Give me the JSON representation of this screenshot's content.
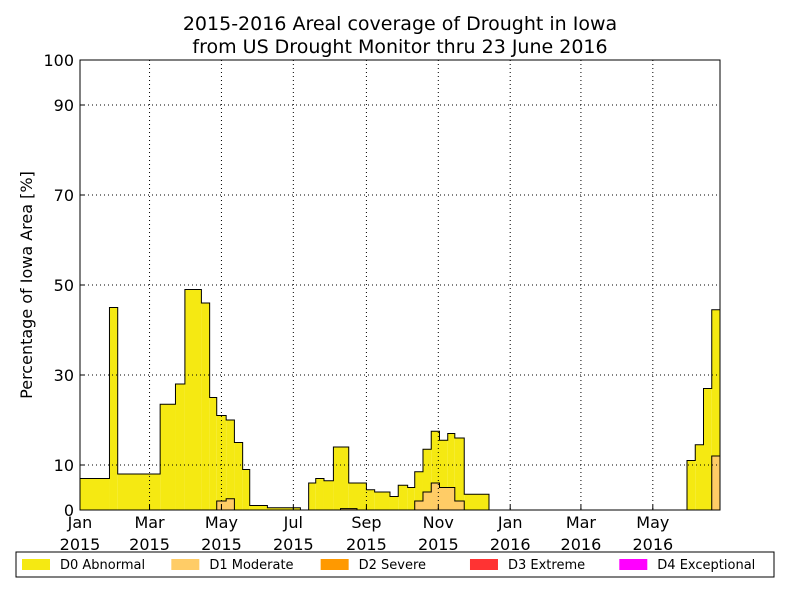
{
  "chart_data": {
    "type": "step-area",
    "title": "2015-2016 Areal coverage of Drought in Iowa",
    "subtitle": "from US Drought Monitor thru 23 June 2016",
    "y_label": "Percentage of Iowa Area [%]",
    "xlim": [
      0,
      543
    ],
    "xticks": [
      {
        "value": 0,
        "label": "Jan\n2015"
      },
      {
        "value": 59,
        "label": "Mar\n2015"
      },
      {
        "value": 120,
        "label": "May\n2015"
      },
      {
        "value": 181,
        "label": "Jul\n2015"
      },
      {
        "value": 243,
        "label": "Sep\n2015"
      },
      {
        "value": 304,
        "label": "Nov\n2015"
      },
      {
        "value": 365,
        "label": "Jan\n2016"
      },
      {
        "value": 425,
        "label": "Mar\n2016"
      },
      {
        "value": 486,
        "label": "May\n2016"
      }
    ],
    "ylim": [
      0,
      100
    ],
    "yticks": [
      0,
      10,
      30,
      50,
      70,
      90,
      100
    ],
    "grid": true,
    "legend": "bottom",
    "series": [
      {
        "name": "D0 Abnormal",
        "color": "#f5e912",
        "x": [
          0,
          25,
          32,
          68,
          81,
          89,
          103,
          110,
          116,
          124,
          131,
          138,
          144,
          159,
          187,
          194,
          200,
          207,
          215,
          228,
          243,
          250,
          263,
          270,
          278,
          284,
          291,
          298,
          305,
          312,
          318,
          326,
          347,
          515,
          522,
          529,
          536
        ],
        "values": [
          7,
          45,
          8,
          23.5,
          28,
          49,
          46,
          25,
          21,
          20,
          15,
          9,
          1,
          0.5,
          0,
          6,
          7,
          6.5,
          14,
          6,
          4.5,
          4,
          3,
          5.5,
          5,
          8.5,
          13.5,
          17.5,
          15.5,
          17,
          16,
          3.5,
          0,
          11,
          14.5,
          27,
          44.5
        ]
      },
      {
        "name": "D1 Moderate",
        "color": "#ffcc66",
        "x": [
          0,
          116,
          124,
          131,
          221,
          235,
          284,
          291,
          298,
          305,
          318,
          326,
          536
        ],
        "values": [
          0,
          2,
          2.5,
          0,
          0.3,
          0,
          2,
          4,
          6,
          5,
          2,
          0,
          12
        ]
      },
      {
        "name": "D2 Severe",
        "color": "#ff9900",
        "x": [
          0
        ],
        "values": [
          0
        ]
      },
      {
        "name": "D3 Extreme",
        "color": "#ff3333",
        "x": [
          0
        ],
        "values": [
          0
        ]
      },
      {
        "name": "D4 Exceptional",
        "color": "#ff00ff",
        "x": [
          0
        ],
        "values": [
          0
        ]
      }
    ]
  }
}
